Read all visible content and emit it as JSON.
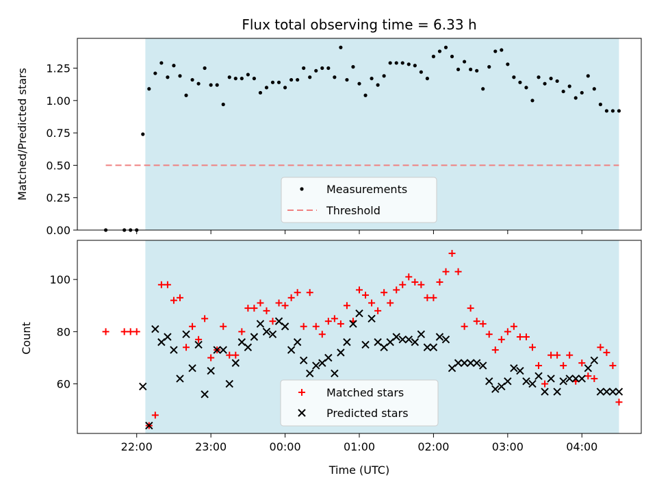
{
  "chart_data": [
    {
      "type": "scatter",
      "title": "Flux total observing time = 6.33 h",
      "xlabel": "",
      "ylabel": "Matched/Predicted stars",
      "ylim": [
        0,
        1.48
      ],
      "yticks": [
        "0.00",
        "0.25",
        "0.50",
        "0.75",
        "1.00",
        "1.25"
      ],
      "ytick_values": [
        0,
        0.25,
        0.5,
        0.75,
        1.0,
        1.25
      ],
      "shaded_region": {
        "start": "22:07",
        "end": "04:30",
        "color": "#add8e6"
      },
      "legend": {
        "position": "lower-center",
        "entries": [
          "Measurements",
          "Threshold"
        ]
      },
      "series": [
        {
          "name": "Measurements",
          "marker": "dot",
          "color": "#000000",
          "x": [
            "21:35",
            "21:50",
            "21:55",
            "22:00",
            "22:05",
            "22:10",
            "22:15",
            "22:20",
            "22:25",
            "22:30",
            "22:35",
            "22:40",
            "22:45",
            "22:50",
            "22:55",
            "23:00",
            "23:05",
            "23:10",
            "23:15",
            "23:20",
            "23:25",
            "23:30",
            "23:35",
            "23:40",
            "23:45",
            "23:50",
            "23:55",
            "00:00",
            "00:05",
            "00:10",
            "00:15",
            "00:20",
            "00:25",
            "00:30",
            "00:35",
            "00:40",
            "00:45",
            "00:50",
            "00:55",
            "01:00",
            "01:05",
            "01:10",
            "01:15",
            "01:20",
            "01:25",
            "01:30",
            "01:35",
            "01:40",
            "01:45",
            "01:50",
            "01:55",
            "02:00",
            "02:05",
            "02:10",
            "02:15",
            "02:20",
            "02:25",
            "02:30",
            "02:35",
            "02:40",
            "02:45",
            "02:50",
            "02:55",
            "03:00",
            "03:05",
            "03:10",
            "03:15",
            "03:20",
            "03:25",
            "03:30",
            "03:35",
            "03:40",
            "03:45",
            "03:50",
            "03:55",
            "04:00",
            "04:05",
            "04:10",
            "04:15",
            "04:20",
            "04:25",
            "04:30"
          ],
          "y": [
            0.0,
            0.0,
            0.0,
            0.0,
            0.74,
            1.09,
            1.21,
            1.29,
            1.18,
            1.27,
            1.19,
            1.04,
            1.16,
            1.13,
            1.25,
            1.12,
            1.12,
            0.97,
            1.18,
            1.17,
            1.17,
            1.2,
            1.17,
            1.06,
            1.1,
            1.14,
            1.14,
            1.1,
            1.16,
            1.16,
            1.25,
            1.18,
            1.23,
            1.25,
            1.25,
            1.18,
            1.41,
            1.16,
            1.26,
            1.13,
            1.04,
            1.17,
            1.12,
            1.19,
            1.29,
            1.29,
            1.29,
            1.28,
            1.27,
            1.22,
            1.17,
            1.34,
            1.38,
            1.41,
            1.34,
            1.24,
            1.3,
            1.24,
            1.23,
            1.09,
            1.26,
            1.38,
            1.39,
            1.28,
            1.18,
            1.14,
            1.1,
            1.0,
            1.18,
            1.13,
            1.17,
            1.15,
            1.07,
            1.11,
            1.02,
            1.06,
            1.19,
            1.09,
            0.97,
            0.92,
            0.92,
            0.92
          ]
        },
        {
          "name": "Threshold",
          "marker": "dashed-line",
          "color": "#f08080",
          "x": [
            "21:35",
            "04:30"
          ],
          "y": [
            0.5,
            0.5
          ]
        }
      ]
    },
    {
      "type": "scatter",
      "title": "",
      "xlabel": "Time (UTC)",
      "ylabel": "Count",
      "ylim": [
        41,
        115
      ],
      "yticks": [
        "60",
        "80",
        "100"
      ],
      "ytick_values": [
        60,
        80,
        100
      ],
      "xticks": [
        "22:00",
        "23:00",
        "00:00",
        "01:00",
        "02:00",
        "03:00",
        "04:00"
      ],
      "shaded_region": {
        "start": "22:07",
        "end": "04:30",
        "color": "#add8e6"
      },
      "legend": {
        "position": "lower-center",
        "entries": [
          "Matched stars",
          "Predicted stars"
        ]
      },
      "series": [
        {
          "name": "Matched stars",
          "marker": "plus",
          "color": "#ff0000",
          "x": [
            "21:35",
            "21:50",
            "21:55",
            "22:00",
            "22:10",
            "22:15",
            "22:20",
            "22:25",
            "22:30",
            "22:35",
            "22:40",
            "22:45",
            "22:50",
            "22:55",
            "23:00",
            "23:05",
            "23:10",
            "23:15",
            "23:20",
            "23:25",
            "23:30",
            "23:35",
            "23:40",
            "23:45",
            "23:50",
            "23:55",
            "00:00",
            "00:05",
            "00:10",
            "00:15",
            "00:20",
            "00:25",
            "00:30",
            "00:35",
            "00:40",
            "00:45",
            "00:50",
            "00:55",
            "01:00",
            "01:05",
            "01:10",
            "01:15",
            "01:20",
            "01:25",
            "01:30",
            "01:35",
            "01:40",
            "01:45",
            "01:50",
            "01:55",
            "02:00",
            "02:05",
            "02:10",
            "02:15",
            "02:20",
            "02:25",
            "02:30",
            "02:35",
            "02:40",
            "02:45",
            "02:50",
            "02:55",
            "03:00",
            "03:05",
            "03:10",
            "03:15",
            "03:20",
            "03:25",
            "03:30",
            "03:35",
            "03:40",
            "03:45",
            "03:50",
            "03:55",
            "04:00",
            "04:05",
            "04:10",
            "04:15",
            "04:20",
            "04:25",
            "04:30"
          ],
          "y": [
            80,
            80,
            80,
            80,
            44,
            48,
            98,
            98,
            92,
            93,
            74,
            82,
            77,
            85,
            70,
            73,
            82,
            71,
            71,
            80,
            89,
            89,
            91,
            88,
            84,
            91,
            90,
            93,
            95,
            82,
            95,
            82,
            79,
            84,
            85,
            83,
            90,
            84,
            96,
            94,
            91,
            88,
            95,
            91,
            96,
            98,
            101,
            99,
            98,
            93,
            93,
            99,
            103,
            110,
            103,
            82,
            89,
            84,
            83,
            79,
            73,
            77,
            80,
            82,
            78,
            78,
            74,
            67,
            60,
            71,
            71,
            67,
            71,
            61,
            68,
            63,
            62,
            74,
            72,
            67,
            53
          ]
        },
        {
          "name": "Predicted stars",
          "marker": "x",
          "color": "#000000",
          "x": [
            "22:05",
            "22:10",
            "22:15",
            "22:20",
            "22:25",
            "22:30",
            "22:35",
            "22:40",
            "22:45",
            "22:50",
            "22:55",
            "23:00",
            "23:05",
            "23:10",
            "23:15",
            "23:20",
            "23:25",
            "23:30",
            "23:35",
            "23:40",
            "23:45",
            "23:50",
            "23:55",
            "00:00",
            "00:05",
            "00:10",
            "00:15",
            "00:20",
            "00:25",
            "00:30",
            "00:35",
            "00:40",
            "00:45",
            "00:50",
            "00:55",
            "01:00",
            "01:05",
            "01:10",
            "01:15",
            "01:20",
            "01:25",
            "01:30",
            "01:35",
            "01:40",
            "01:45",
            "01:50",
            "01:55",
            "02:00",
            "02:05",
            "02:10",
            "02:15",
            "02:20",
            "02:25",
            "02:30",
            "02:35",
            "02:40",
            "02:45",
            "02:50",
            "02:55",
            "03:00",
            "03:05",
            "03:10",
            "03:15",
            "03:20",
            "03:25",
            "03:30",
            "03:35",
            "03:40",
            "03:45",
            "03:50",
            "03:55",
            "04:00",
            "04:05",
            "04:10",
            "04:15",
            "04:20",
            "04:25",
            "04:30"
          ],
          "y": [
            59,
            44,
            81,
            76,
            78,
            73,
            62,
            79,
            66,
            75,
            56,
            65,
            73,
            73,
            60,
            68,
            76,
            74,
            78,
            83,
            80,
            79,
            84,
            82,
            73,
            76,
            69,
            64,
            67,
            68,
            70,
            64,
            72,
            76,
            83,
            87,
            75,
            85,
            76,
            74,
            76,
            78,
            77,
            77,
            76,
            79,
            74,
            74,
            78,
            77,
            66,
            68,
            68,
            68,
            68,
            67,
            61,
            58,
            59,
            61,
            66,
            65,
            61,
            60,
            63,
            57,
            62,
            57,
            61,
            62,
            62,
            62,
            66,
            69,
            57,
            57,
            57,
            57
          ]
        }
      ]
    }
  ]
}
